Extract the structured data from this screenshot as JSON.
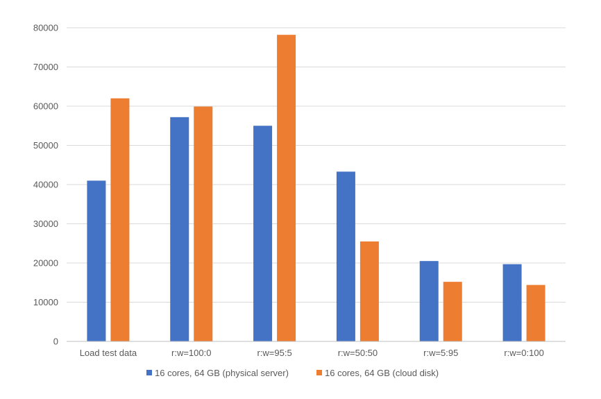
{
  "chart_data": {
    "type": "bar",
    "title": "",
    "xlabel": "",
    "ylabel": "",
    "categories": [
      "Load test data",
      "r:w=100:0",
      "r:w=95:5",
      "r:w=50:50",
      "r:w=5:95",
      "r:w=0:100"
    ],
    "series": [
      {
        "name": "16 cores, 64 GB (physical server)",
        "color": "#4472c4",
        "values": [
          41000,
          57200,
          55000,
          43300,
          20500,
          19700
        ]
      },
      {
        "name": "16 cores, 64 GB (cloud disk)",
        "color": "#ed7d31",
        "values": [
          62000,
          59900,
          78200,
          25500,
          15200,
          14400
        ]
      }
    ],
    "ylim": [
      0,
      80000
    ],
    "yticks": [
      0,
      10000,
      20000,
      30000,
      40000,
      50000,
      60000,
      70000,
      80000
    ],
    "grid": true,
    "legend_position": "bottom"
  }
}
